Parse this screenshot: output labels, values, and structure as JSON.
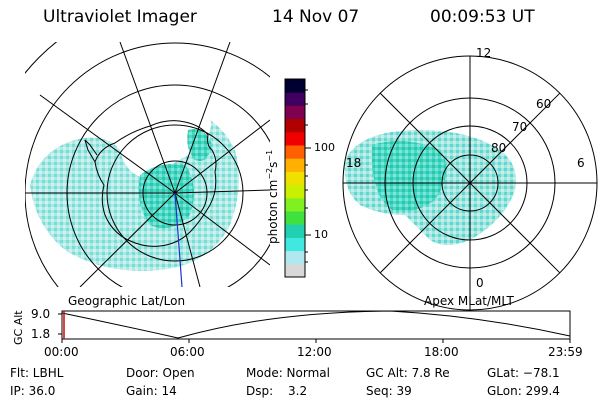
{
  "header": {
    "instrument": "Ultraviolet Imager",
    "date": "14 Nov 07",
    "time": "00:09:53 UT"
  },
  "panels": {
    "left_label": "Geographic Lat/Lon",
    "right_label": "Apex MLat/MLT"
  },
  "colorbar": {
    "title_main": "photon cm",
    "title_exp1": "−2",
    "title_s": "s",
    "title_exp2": "−1",
    "tick_high": "100",
    "tick_low": "10",
    "colors": [
      "#d8d8d8",
      "#b0e8f0",
      "#40e8e0",
      "#20d0b0",
      "#40e040",
      "#80f020",
      "#c8f000",
      "#f0e000",
      "#ffb000",
      "#ff6000",
      "#f00000",
      "#b00000",
      "#800050",
      "#400060",
      "#000030"
    ]
  },
  "mlt_labels": {
    "top": "12",
    "bottom": "0",
    "left": "18",
    "right": "6"
  },
  "mlat_labels": [
    "60",
    "70",
    "80"
  ],
  "altitude_plot": {
    "axis_label": "GC Alt",
    "ymax_label": "9.0",
    "ymin_label": "1.8",
    "x_ticks": [
      "00:00",
      "06:00",
      "12:00",
      "18:00",
      "23:59"
    ]
  },
  "info": {
    "flt": "Flt: LBHL",
    "door": "Door: Open",
    "mode": "Mode: Normal",
    "gcalt": "GC Alt: 7.8 Re",
    "glat": "GLat: −78.1",
    "ip": "IP: 36.0",
    "gain": "Gain: 14",
    "dsp_label": "Dsp:",
    "dsp_value": "3.2",
    "seq": "Seq: 39",
    "glon": "GLon: 299.4"
  }
}
